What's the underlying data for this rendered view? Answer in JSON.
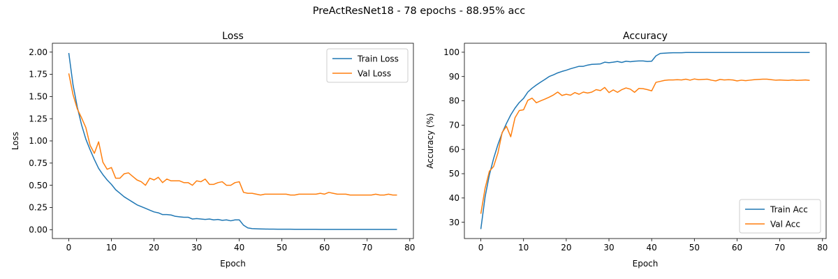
{
  "figure": {
    "suptitle": "PreActResNet18 - 78 epochs - 88.95% acc"
  },
  "colors": {
    "train": "#1f77b4",
    "val": "#ff7f0e"
  },
  "chart_data": [
    {
      "type": "line",
      "title": "Loss",
      "xlabel": "Epoch",
      "ylabel": "Loss",
      "xlim": [
        -3.85,
        80.85
      ],
      "ylim": [
        -0.1,
        2.1
      ],
      "xticks": [
        0,
        10,
        20,
        30,
        40,
        50,
        60,
        70,
        80
      ],
      "yticks": [
        0.0,
        0.25,
        0.5,
        0.75,
        1.0,
        1.25,
        1.5,
        1.75,
        2.0
      ],
      "ytick_labels": [
        "0.00",
        "0.25",
        "0.50",
        "0.75",
        "1.00",
        "1.25",
        "1.50",
        "1.75",
        "2.00"
      ],
      "legend_position": "top-right",
      "grid": false,
      "series": [
        {
          "name": "Train Loss",
          "color": "#1f77b4",
          "x": [
            0,
            1,
            2,
            3,
            4,
            5,
            6,
            7,
            8,
            9,
            10,
            11,
            12,
            13,
            14,
            15,
            16,
            17,
            18,
            19,
            20,
            21,
            22,
            23,
            24,
            25,
            26,
            27,
            28,
            29,
            30,
            31,
            32,
            33,
            34,
            35,
            36,
            37,
            38,
            39,
            40,
            41,
            42,
            43,
            44,
            45,
            46,
            47,
            48,
            49,
            50,
            51,
            52,
            53,
            54,
            55,
            56,
            57,
            58,
            59,
            60,
            61,
            62,
            63,
            64,
            65,
            66,
            67,
            68,
            69,
            70,
            71,
            72,
            73,
            74,
            75,
            76,
            77
          ],
          "values": [
            1.99,
            1.63,
            1.38,
            1.18,
            1.02,
            0.9,
            0.79,
            0.69,
            0.62,
            0.56,
            0.51,
            0.45,
            0.41,
            0.37,
            0.34,
            0.31,
            0.28,
            0.26,
            0.24,
            0.22,
            0.2,
            0.19,
            0.17,
            0.17,
            0.165,
            0.15,
            0.145,
            0.14,
            0.14,
            0.12,
            0.125,
            0.12,
            0.115,
            0.12,
            0.11,
            0.115,
            0.105,
            0.11,
            0.1,
            0.11,
            0.11,
            0.05,
            0.02,
            0.012,
            0.01,
            0.008,
            0.007,
            0.006,
            0.006,
            0.005,
            0.005,
            0.005,
            0.005,
            0.004,
            0.004,
            0.004,
            0.004,
            0.004,
            0.004,
            0.003,
            0.003,
            0.003,
            0.003,
            0.003,
            0.003,
            0.003,
            0.003,
            0.003,
            0.003,
            0.003,
            0.003,
            0.003,
            0.003,
            0.003,
            0.003,
            0.003,
            0.003,
            0.003
          ]
        },
        {
          "name": "Val Loss",
          "color": "#ff7f0e",
          "x": [
            0,
            1,
            2,
            3,
            4,
            5,
            6,
            7,
            8,
            9,
            10,
            11,
            12,
            13,
            14,
            15,
            16,
            17,
            18,
            19,
            20,
            21,
            22,
            23,
            24,
            25,
            26,
            27,
            28,
            29,
            30,
            31,
            32,
            33,
            34,
            35,
            36,
            37,
            38,
            39,
            40,
            41,
            42,
            43,
            44,
            45,
            46,
            47,
            48,
            49,
            50,
            51,
            52,
            53,
            54,
            55,
            56,
            57,
            58,
            59,
            60,
            61,
            62,
            63,
            64,
            65,
            66,
            67,
            68,
            69,
            70,
            71,
            72,
            73,
            74,
            75,
            76,
            77
          ],
          "values": [
            1.76,
            1.52,
            1.36,
            1.26,
            1.15,
            0.95,
            0.86,
            0.99,
            0.76,
            0.68,
            0.7,
            0.58,
            0.58,
            0.63,
            0.64,
            0.6,
            0.56,
            0.54,
            0.5,
            0.58,
            0.56,
            0.59,
            0.53,
            0.57,
            0.55,
            0.55,
            0.55,
            0.53,
            0.53,
            0.5,
            0.55,
            0.54,
            0.57,
            0.51,
            0.51,
            0.53,
            0.54,
            0.5,
            0.5,
            0.53,
            0.54,
            0.42,
            0.41,
            0.41,
            0.4,
            0.39,
            0.4,
            0.4,
            0.4,
            0.4,
            0.4,
            0.4,
            0.39,
            0.39,
            0.4,
            0.4,
            0.4,
            0.4,
            0.4,
            0.41,
            0.4,
            0.42,
            0.41,
            0.4,
            0.4,
            0.4,
            0.39,
            0.39,
            0.39,
            0.39,
            0.39,
            0.39,
            0.4,
            0.39,
            0.39,
            0.4,
            0.39,
            0.39
          ]
        }
      ]
    },
    {
      "type": "line",
      "title": "Accuracy",
      "xlabel": "Epoch",
      "ylabel": "Accuracy (%)",
      "xlim": [
        -3.85,
        80.85
      ],
      "ylim": [
        23.3,
        103.7
      ],
      "xticks": [
        0,
        10,
        20,
        30,
        40,
        50,
        60,
        70,
        80
      ],
      "yticks": [
        30,
        40,
        50,
        60,
        70,
        80,
        90,
        100
      ],
      "ytick_labels": [
        "30",
        "40",
        "50",
        "60",
        "70",
        "80",
        "90",
        "100"
      ],
      "legend_position": "bottom-right",
      "grid": false,
      "series": [
        {
          "name": "Train Acc",
          "color": "#1f77b4",
          "x": [
            0,
            1,
            2,
            3,
            4,
            5,
            6,
            7,
            8,
            9,
            10,
            11,
            12,
            13,
            14,
            15,
            16,
            17,
            18,
            19,
            20,
            21,
            22,
            23,
            24,
            25,
            26,
            27,
            28,
            29,
            30,
            31,
            32,
            33,
            34,
            35,
            36,
            37,
            38,
            39,
            40,
            41,
            42,
            43,
            44,
            45,
            46,
            47,
            48,
            49,
            50,
            51,
            52,
            53,
            54,
            55,
            56,
            57,
            58,
            59,
            60,
            61,
            62,
            63,
            64,
            65,
            66,
            67,
            68,
            69,
            70,
            71,
            72,
            73,
            74,
            75,
            76,
            77
          ],
          "values": [
            27.2,
            40.5,
            49.5,
            56.3,
            62,
            66.8,
            70.7,
            74.2,
            77,
            79.3,
            81,
            83.6,
            85.2,
            86.5,
            87.7,
            88.8,
            90,
            90.7,
            91.5,
            92.1,
            92.6,
            93.2,
            93.7,
            94.2,
            94.2,
            94.7,
            95,
            95.1,
            95.2,
            95.9,
            95.7,
            95.9,
            96.2,
            95.8,
            96.3,
            96.1,
            96.3,
            96.4,
            96.4,
            96.2,
            96.3,
            98.5,
            99.5,
            99.6,
            99.7,
            99.8,
            99.8,
            99.8,
            99.9,
            99.9,
            99.9,
            99.9,
            99.9,
            99.9,
            99.9,
            99.9,
            99.9,
            99.9,
            99.9,
            99.9,
            99.9,
            99.9,
            99.9,
            99.9,
            99.9,
            99.9,
            99.9,
            99.9,
            99.9,
            99.9,
            99.9,
            99.9,
            99.9,
            99.9,
            99.9,
            99.9,
            99.9,
            99.9
          ]
        },
        {
          "name": "Val Acc",
          "color": "#ff7f0e",
          "x": [
            0,
            1,
            2,
            3,
            4,
            5,
            6,
            7,
            8,
            9,
            10,
            11,
            12,
            13,
            14,
            15,
            16,
            17,
            18,
            19,
            20,
            21,
            22,
            23,
            24,
            25,
            26,
            27,
            28,
            29,
            30,
            31,
            32,
            33,
            34,
            35,
            36,
            37,
            38,
            39,
            40,
            41,
            42,
            43,
            44,
            45,
            46,
            47,
            48,
            49,
            50,
            51,
            52,
            53,
            54,
            55,
            56,
            57,
            58,
            59,
            60,
            61,
            62,
            63,
            64,
            65,
            66,
            67,
            68,
            69,
            70,
            71,
            72,
            73,
            74,
            75,
            76,
            77
          ],
          "values": [
            33.5,
            44,
            51,
            53,
            58.5,
            67,
            69.5,
            65.2,
            73,
            76,
            76.3,
            80.2,
            81.1,
            79.2,
            80,
            80.7,
            81.5,
            82.4,
            83.6,
            82.2,
            82.7,
            82.3,
            83.4,
            82.7,
            83.6,
            83.2,
            83.6,
            84.6,
            84.2,
            85.5,
            83.4,
            84.5,
            83.5,
            84.6,
            85.3,
            84.8,
            83.5,
            85.1,
            85,
            84.6,
            84.1,
            87.6,
            88,
            88.4,
            88.6,
            88.6,
            88.7,
            88.6,
            88.9,
            88.5,
            89,
            88.7,
            88.8,
            88.9,
            88.5,
            88.2,
            88.8,
            88.6,
            88.7,
            88.6,
            88.2,
            88.5,
            88.3,
            88.5,
            88.7,
            88.8,
            88.9,
            88.9,
            88.7,
            88.5,
            88.6,
            88.5,
            88.4,
            88.6,
            88.4,
            88.5,
            88.6,
            88.4
          ]
        }
      ]
    }
  ]
}
